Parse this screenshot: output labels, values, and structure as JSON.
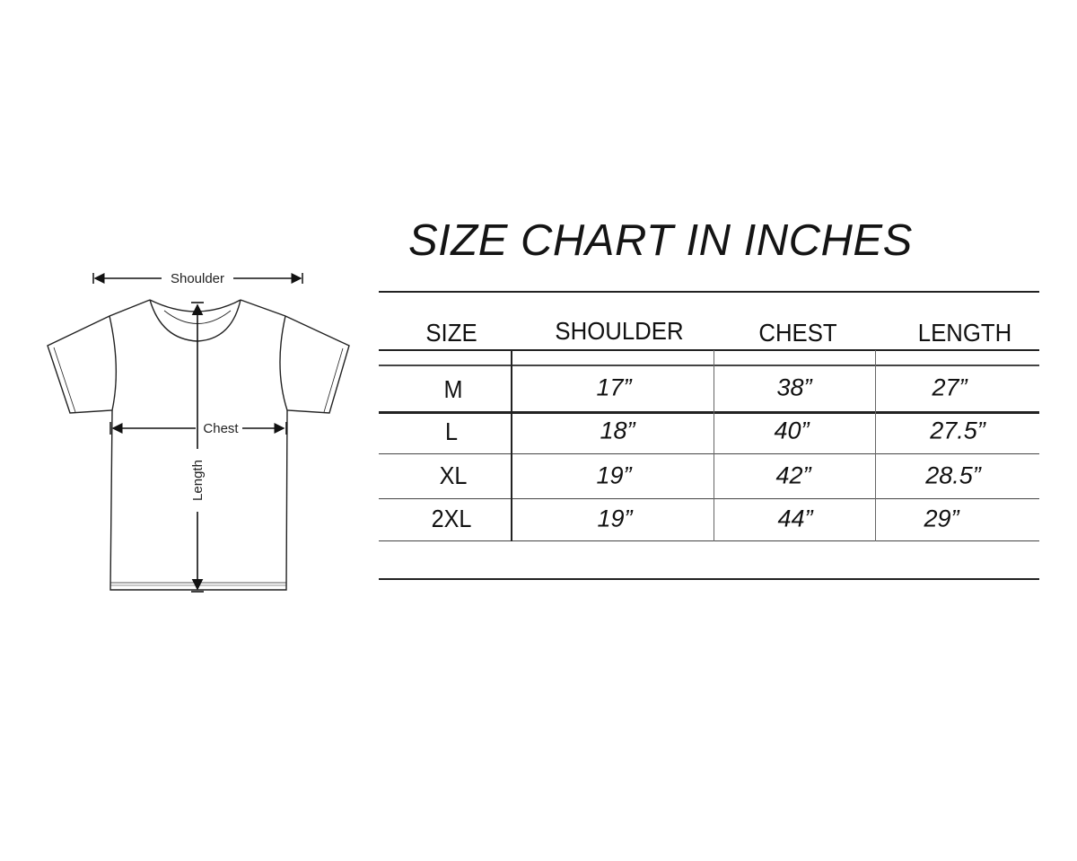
{
  "title": "SIZE CHART IN INCHES",
  "diagram": {
    "labels": {
      "shoulder": "Shoulder",
      "chest": "Chest",
      "length": "Length"
    }
  },
  "table": {
    "headers": [
      "SIZE",
      "SHOULDER",
      "CHEST",
      "LENGTH"
    ],
    "rows": [
      [
        "M",
        "17”",
        "38”",
        "27”"
      ],
      [
        "L",
        "18”",
        "40”",
        "27.5”"
      ],
      [
        "XL",
        "19”",
        "42”",
        "28.5”"
      ],
      [
        "2XL",
        "19”",
        "44”",
        "29”"
      ]
    ]
  }
}
